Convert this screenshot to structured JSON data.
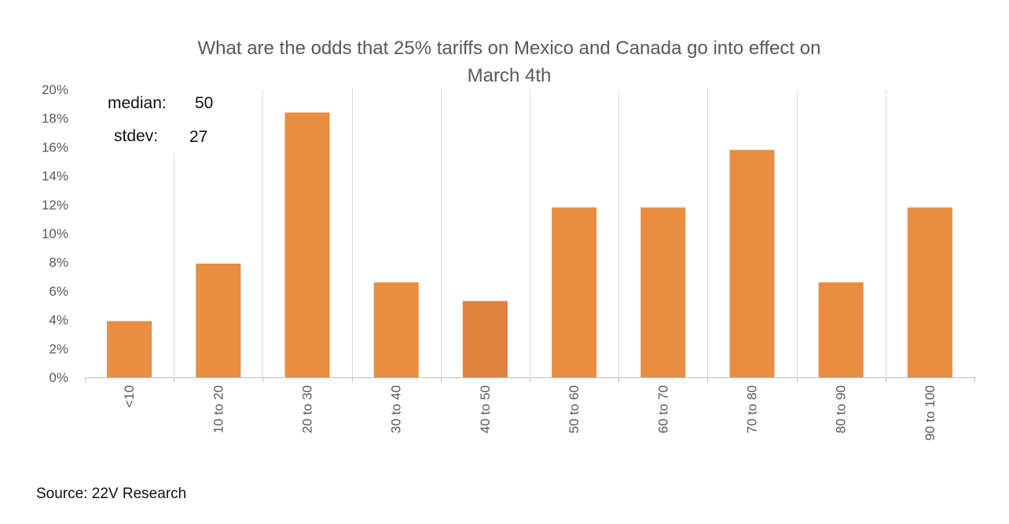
{
  "chart_data": {
    "type": "bar",
    "title": "What are the odds that 25% tariffs on Mexico and Canada go into effect on March 4th",
    "title_lines": [
      "What are the odds that 25% tariffs on Mexico and Canada go into effect on",
      "March 4th"
    ],
    "xlabel": "",
    "ylabel": "",
    "categories": [
      "<10",
      "10 to 20",
      "20 to 30",
      "30 to 40",
      "40 to 50",
      "50 to 60",
      "60 to 70",
      "70 to 80",
      "80 to 90",
      "90 to 100"
    ],
    "values": [
      0.039,
      0.079,
      0.184,
      0.066,
      0.053,
      0.118,
      0.118,
      0.158,
      0.066,
      0.118
    ],
    "ylim": [
      0,
      0.2
    ],
    "yticks": [
      0,
      0.02,
      0.04,
      0.06,
      0.08,
      0.1,
      0.12,
      0.14,
      0.16,
      0.18,
      0.2
    ],
    "ytick_labels": [
      "0%",
      "2%",
      "4%",
      "6%",
      "8%",
      "10%",
      "12%",
      "14%",
      "16%",
      "18%",
      "20%"
    ],
    "grid": "vertical",
    "legend": "none",
    "bar_color": "#E88D41",
    "highlight_bar_color": "#E0823F",
    "highlight_category": "40 to 50",
    "grid_color": "#D9D9D9",
    "axis_color": "#BFBFBF",
    "text_color": "#595959",
    "annotations": {
      "median_label": "median:",
      "median_value": "50",
      "stdev_label": "stdev:",
      "stdev_value": "27"
    }
  },
  "source": "Source: 22V Research"
}
